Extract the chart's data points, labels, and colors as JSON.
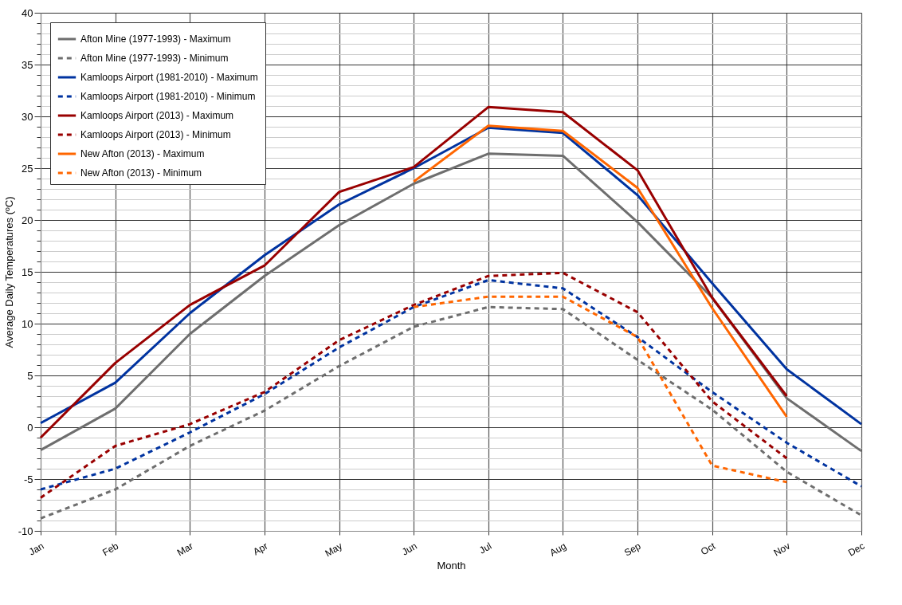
{
  "chart_data": {
    "type": "line",
    "xlabel": "Month",
    "ylabel": "Average Daily Temperatures (ºC)",
    "categories": [
      "Jan",
      "Feb",
      "Mar",
      "Apr",
      "May",
      "Jun",
      "Jul",
      "Aug",
      "Sep",
      "Oct",
      "Nov",
      "Dec"
    ],
    "ylim": [
      -10,
      40
    ],
    "yticks": [
      -10,
      {
        "value": -9,
        "label": null
      },
      {
        "value": -8,
        "label": null
      },
      {
        "value": -7,
        "label": null
      },
      {
        "value": -6,
        "label": null
      },
      -5,
      {
        "value": -4,
        "label": null
      },
      {
        "value": -3,
        "label": null
      },
      {
        "value": -2,
        "label": null
      },
      {
        "value": -1,
        "label": null
      },
      0,
      {
        "value": 1,
        "label": null
      },
      {
        "value": 2,
        "label": null
      },
      {
        "value": 3,
        "label": null
      },
      {
        "value": 4,
        "label": null
      },
      5,
      {
        "value": 6,
        "label": null
      },
      {
        "value": 7,
        "label": null
      },
      {
        "value": 8,
        "label": null
      },
      {
        "value": 9,
        "label": null
      },
      10,
      {
        "value": 11,
        "label": null
      },
      {
        "value": 12,
        "label": null
      },
      {
        "value": 13,
        "label": null
      },
      {
        "value": 14,
        "label": null
      },
      15,
      {
        "value": 16,
        "label": null
      },
      {
        "value": 17,
        "label": null
      },
      {
        "value": 18,
        "label": null
      },
      {
        "value": 19,
        "label": null
      },
      20,
      {
        "value": 21,
        "label": null
      },
      {
        "value": 22,
        "label": null
      },
      {
        "value": 23,
        "label": null
      },
      {
        "value": 24,
        "label": null
      },
      25,
      {
        "value": 26,
        "label": null
      },
      {
        "value": 27,
        "label": null
      },
      {
        "value": 28,
        "label": null
      },
      {
        "value": 29,
        "label": null
      },
      30,
      {
        "value": 31,
        "label": null
      },
      {
        "value": 32,
        "label": null
      },
      {
        "value": 33,
        "label": null
      },
      {
        "value": 34,
        "label": null
      },
      35,
      {
        "value": 36,
        "label": null
      },
      {
        "value": 37,
        "label": null
      },
      {
        "value": 38,
        "label": null
      },
      {
        "value": 39,
        "label": null
      },
      40
    ],
    "grid": true,
    "legend": "top left",
    "marker": "none",
    "series": [
      {
        "name": "Afton Mine (1977-1993) - Maximum",
        "color": "#6e6e6e",
        "line_style": "solid",
        "values": [
          -2.2,
          1.8,
          9,
          14.6,
          19.5,
          23.5,
          26.4,
          26.2,
          19.8,
          12.5,
          2.8,
          -2.3
        ]
      },
      {
        "name": "Afton Mine (1977-1993) - Minimum",
        "color": "#6e6e6e",
        "line_style": "dashed",
        "values": [
          -8.8,
          -6,
          -1.8,
          1.6,
          5.9,
          9.7,
          11.6,
          11.4,
          6.5,
          1.7,
          -4.3,
          -8.5
        ]
      },
      {
        "name": "Kamloops Airport (1981-2010) - Maximum",
        "color": "#0033a0",
        "line_style": "solid",
        "values": [
          0.4,
          4.3,
          11,
          16.6,
          21.5,
          25,
          28.9,
          28.4,
          22.4,
          13.9,
          5.6,
          0.3
        ]
      },
      {
        "name": "Kamloops Airport (1981-2010) - Minimum",
        "color": "#0033a0",
        "line_style": "dashed",
        "values": [
          -6,
          -4,
          -0.5,
          3.2,
          7.7,
          11.6,
          14.2,
          13.4,
          8.7,
          3.4,
          -1.5,
          -5.7
        ]
      },
      {
        "name": "Kamloops Airport (2013) - Maximum",
        "color": "#990000",
        "line_style": "solid",
        "values": [
          -1,
          6.2,
          11.8,
          15.6,
          22.7,
          25.1,
          30.9,
          30.4,
          24.8,
          12.5,
          3,
          null
        ]
      },
      {
        "name": "Kamloops Airport (2013) - Minimum",
        "color": "#990000",
        "line_style": "dashed",
        "values": [
          -6.8,
          -1.8,
          0.3,
          3.4,
          8.4,
          11.8,
          14.6,
          14.9,
          11.1,
          2.5,
          -3,
          null
        ]
      },
      {
        "name": "New Afton (2013) - Maximum",
        "color": "#ff6600",
        "line_style": "solid",
        "values": [
          null,
          null,
          null,
          null,
          null,
          23.7,
          29.1,
          28.6,
          23.1,
          11.5,
          1.0,
          null
        ]
      },
      {
        "name": "New Afton (2013) - Minimum",
        "color": "#ff6600",
        "line_style": "dashed",
        "values": [
          null,
          null,
          null,
          null,
          null,
          11.6,
          12.6,
          12.6,
          8.7,
          -3.7,
          -5.3,
          null
        ]
      }
    ]
  }
}
